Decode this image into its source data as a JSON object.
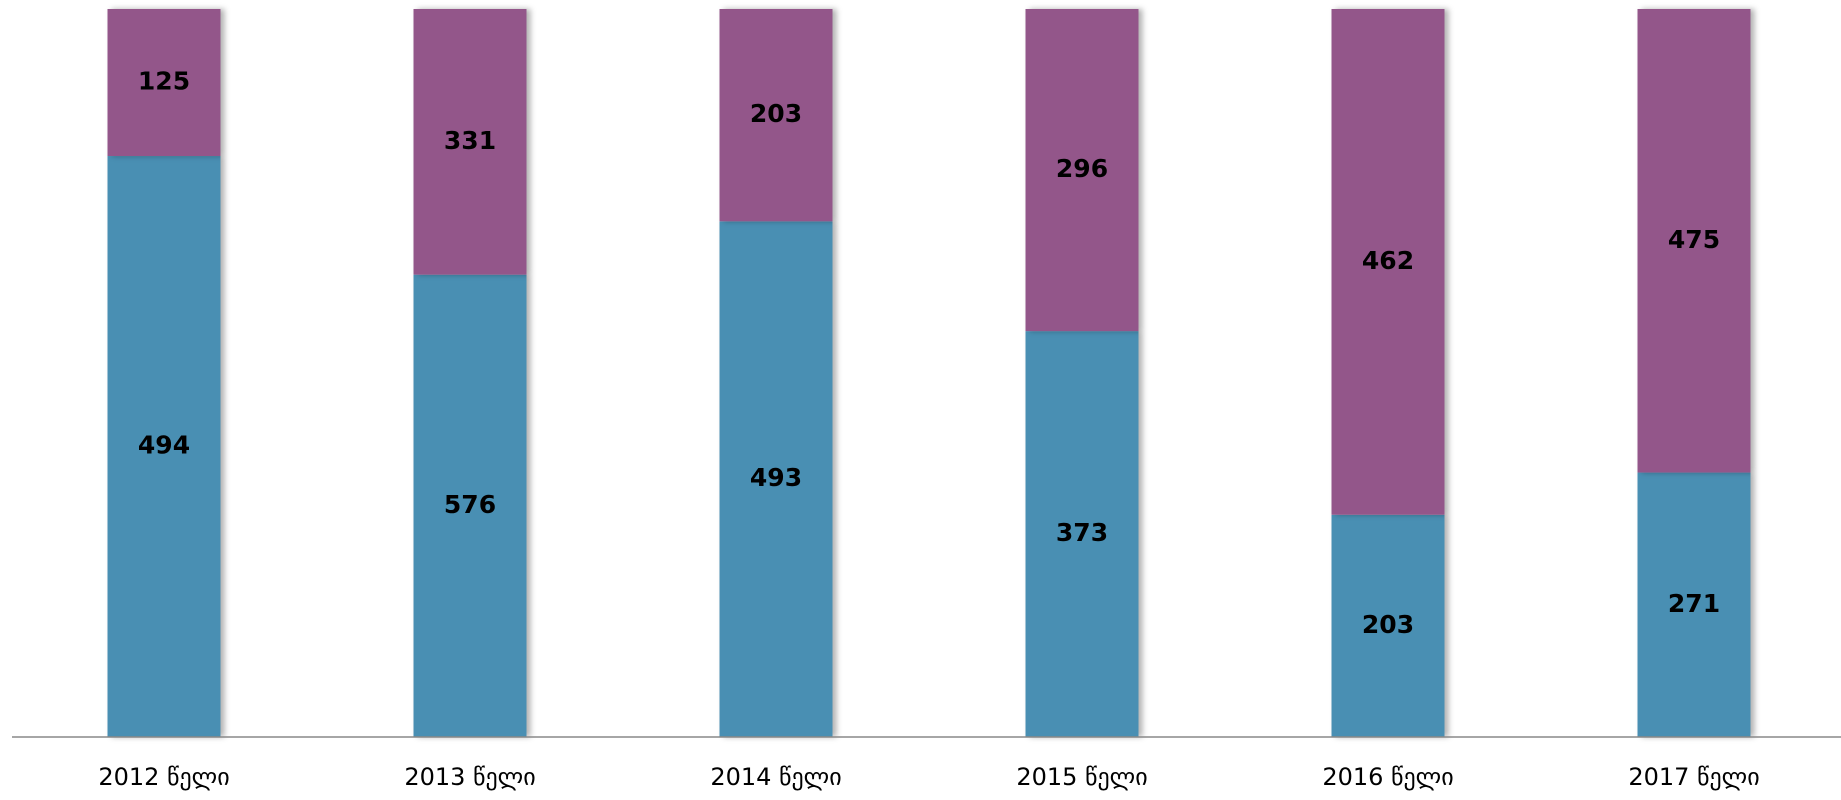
{
  "chart_data": {
    "type": "bar",
    "stacking": "percent",
    "categories": [
      "2012 წელი",
      "2013 წელი",
      "2014 წელი",
      "2015 წელი",
      "2016 წელი",
      "2017 წელი"
    ],
    "series": [
      {
        "color": "#4a8fb3",
        "values": [
          494,
          576,
          493,
          373,
          203,
          271
        ]
      },
      {
        "color": "#93568a",
        "values": [
          125,
          331,
          203,
          296,
          462,
          475
        ]
      }
    ],
    "data_labels": true
  }
}
